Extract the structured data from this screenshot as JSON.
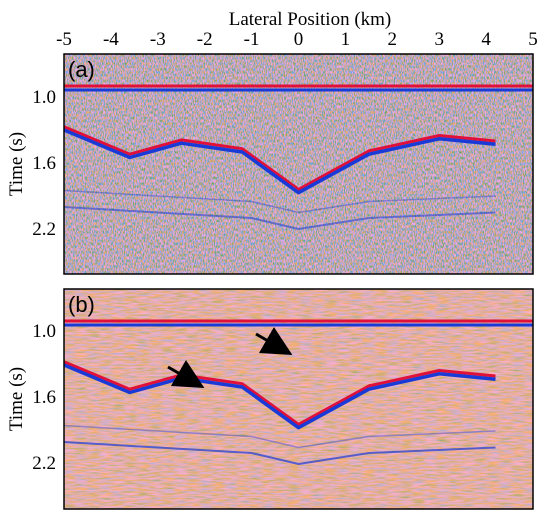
{
  "figure": {
    "x_axis": {
      "label": "Lateral Position (km)",
      "ticks": [
        "-5",
        "-4",
        "-3",
        "-2",
        "-1",
        "0",
        "1",
        "2",
        "3",
        "4",
        "5"
      ],
      "range": [
        -5,
        5
      ]
    },
    "panels": [
      {
        "label": "(a)",
        "y_axis": {
          "label": "Time (s)",
          "ticks": [
            "1.0",
            "1.6",
            "2.2"
          ]
        },
        "style": "noisy",
        "has_arrows": false
      },
      {
        "label": "(b)",
        "y_axis": {
          "label": "Time (s)",
          "ticks": [
            "1.0",
            "1.6",
            "2.2"
          ]
        },
        "style": "smooth",
        "has_arrows": true
      }
    ],
    "colors": {
      "positive": "#e0103a",
      "negative": "#1a3ad8",
      "background": "#ffffff"
    },
    "reflectors": {
      "flat_time_s": 0.9,
      "curved_points": [
        [
          -5,
          1.3
        ],
        [
          -3.6,
          1.55
        ],
        [
          -2.5,
          1.42
        ],
        [
          -1.2,
          1.5
        ],
        [
          0.0,
          1.87
        ],
        [
          1.5,
          1.52
        ],
        [
          3.0,
          1.38
        ],
        [
          4.2,
          1.43
        ]
      ],
      "deeper_points": [
        [
          -5,
          2.0
        ],
        [
          -3.0,
          2.05
        ],
        [
          -1.0,
          2.1
        ],
        [
          0.0,
          2.2
        ],
        [
          1.5,
          2.1
        ],
        [
          4.2,
          2.05
        ]
      ]
    }
  }
}
